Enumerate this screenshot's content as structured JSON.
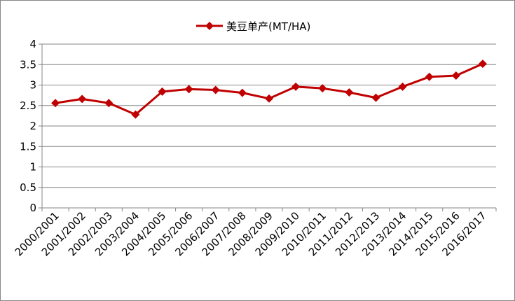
{
  "chart_data": {
    "type": "line",
    "title": "",
    "xlabel": "",
    "ylabel": "",
    "categories": [
      "2000/2001",
      "2001/2002",
      "2002/2003",
      "2003/2004",
      "2004/2005",
      "2005/2006",
      "2006/2007",
      "2007/2008",
      "2008/2009",
      "2009/2010",
      "2010/2011",
      "2011/2012",
      "2012/2013",
      "2013/2014",
      "2014/2015",
      "2015/2016",
      "2016/2017"
    ],
    "series": [
      {
        "name": "美豆单产(MT/HA)",
        "color": "#c00000",
        "marker": "diamond",
        "values": [
          2.56,
          2.66,
          2.56,
          2.28,
          2.84,
          2.9,
          2.88,
          2.81,
          2.67,
          2.96,
          2.92,
          2.82,
          2.69,
          2.96,
          3.2,
          3.23,
          3.52
        ]
      }
    ],
    "ylim": [
      0,
      4
    ],
    "yticks": [
      "0",
      "0.5",
      "1",
      "1.5",
      "2",
      "2.5",
      "3",
      "3.5",
      "4"
    ],
    "grid": true,
    "legend_position": "top"
  }
}
